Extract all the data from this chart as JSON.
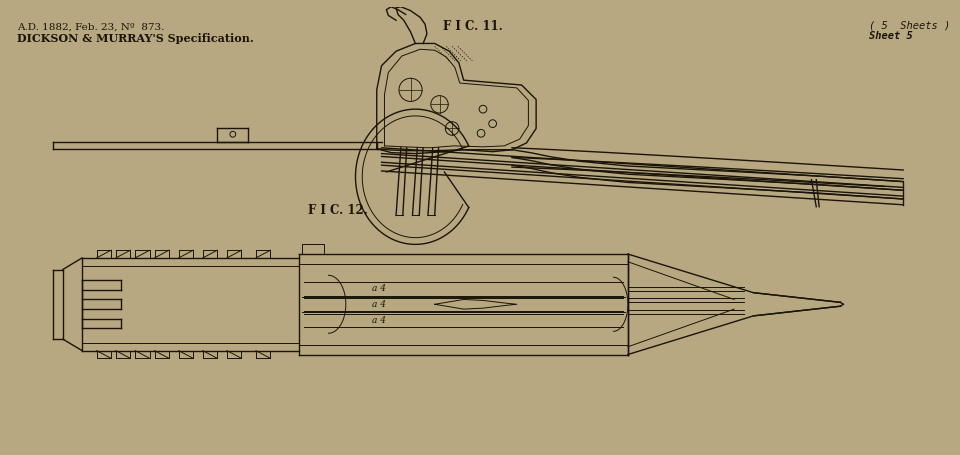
{
  "background_color": "#b8a882",
  "line_color": "#1a1508",
  "fig_width": 9.6,
  "fig_height": 4.56,
  "dpi": 100,
  "title_line1": "A.D. 1882, Feb. 23, Nº  873.",
  "title_line2": "DICKSON & MURRAY'S Specification.",
  "fig11_label": "F I C. 11.",
  "fig12_label": "F I C. 12.",
  "sheets_label": "( 5  Sheets )",
  "sheet5_label": "Sheet 5"
}
